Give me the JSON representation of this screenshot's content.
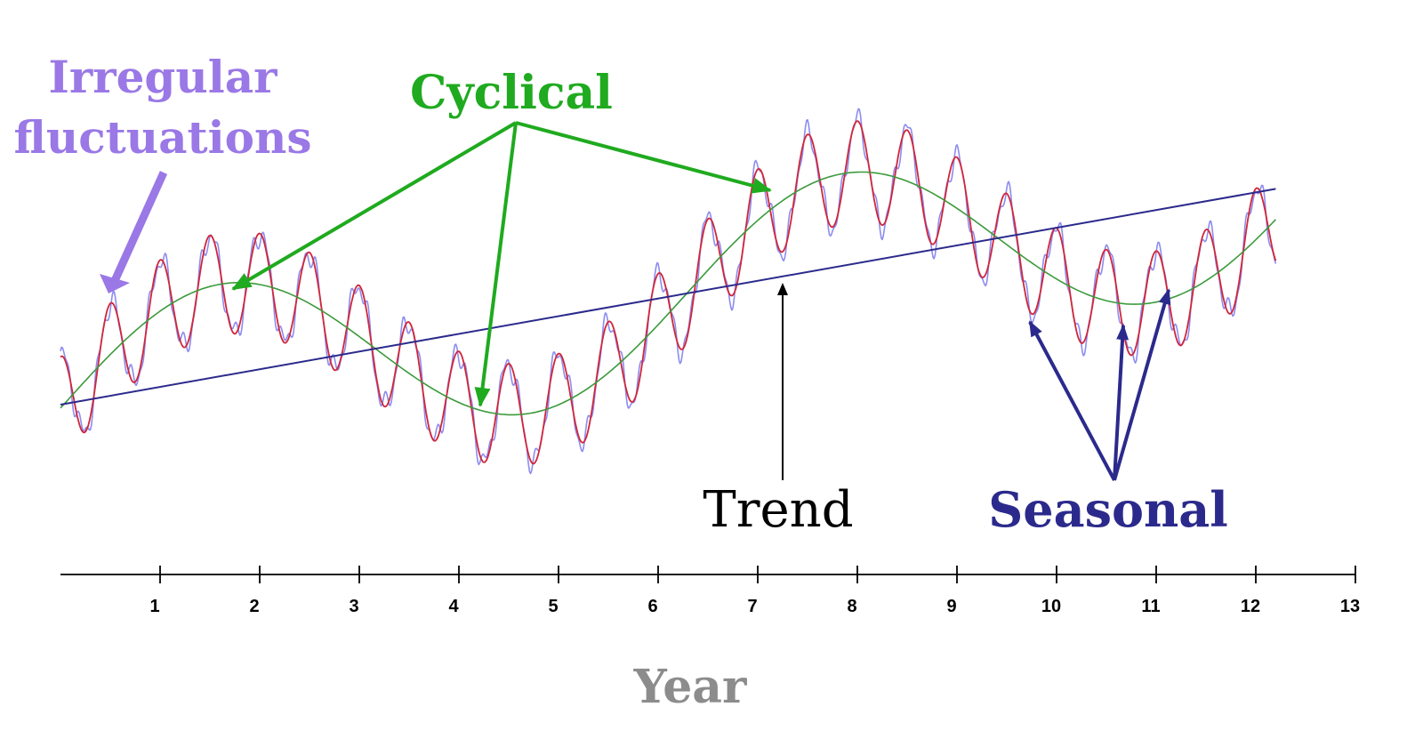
{
  "chart_data": {
    "type": "line",
    "title": "",
    "xlabel": "Year",
    "ylabel": "",
    "xlim": [
      0,
      13
    ],
    "x_ticks": [
      1,
      2,
      3,
      4,
      5,
      6,
      7,
      8,
      9,
      10,
      11,
      12,
      13
    ],
    "grid": false,
    "components": {
      "trend": {
        "start": [
          0.0,
          0.0
        ],
        "end": [
          12.2,
          2.11
        ]
      },
      "cyclical": {
        "period_years": 6.25,
        "amplitude": 0.9,
        "peaks_x": [
          1.6,
          7.85
        ],
        "troughs_x": [
          4.45,
          10.7
        ]
      },
      "seasonal": {
        "period_years": 0.5,
        "amplitude": 0.5
      },
      "irregular": {
        "amplitude": 0.15
      }
    },
    "annotations": [
      {
        "text": "Irregular fluctuations",
        "lines": [
          "Irregular",
          "fluctuations"
        ],
        "color": "#9A78E6",
        "points_to": [
          [
            0.5,
            1.08
          ]
        ]
      },
      {
        "text": "Cyclical",
        "color": "#1FAA1F",
        "points_to": [
          [
            1.75,
            1.0
          ],
          [
            4.25,
            -0.3
          ],
          [
            7.2,
            2.0
          ]
        ]
      },
      {
        "text": "Trend",
        "color": "#000000",
        "points_to": [
          [
            7.35,
            1.26
          ]
        ]
      },
      {
        "text": "Seasonal",
        "color": "#2B2A8C",
        "points_to": [
          [
            9.8,
            0.9
          ],
          [
            10.7,
            0.88
          ],
          [
            11.2,
            1.0
          ]
        ]
      }
    ],
    "colors": {
      "trend": "#2B2A8C",
      "cyclical": "#3C9A3C",
      "seasonal": "#D0263A",
      "irregular": "#8C8CF0",
      "axis": "#000000",
      "xlabel": "#8C8C8C"
    }
  }
}
